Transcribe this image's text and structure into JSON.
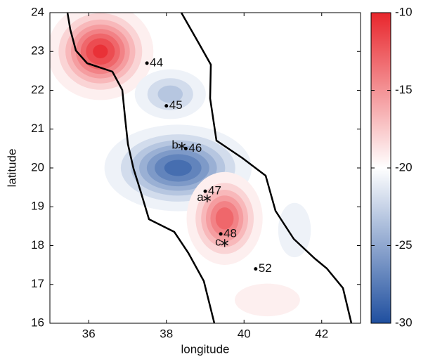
{
  "chart_data": {
    "type": "contour",
    "xlabel": "longitude",
    "ylabel": "latitude",
    "xlim": [
      35,
      43
    ],
    "ylim": [
      16,
      24
    ],
    "xticks": [
      36,
      38,
      40,
      42
    ],
    "yticks": [
      16,
      17,
      18,
      19,
      20,
      21,
      22,
      23,
      24
    ],
    "clim": [
      -30,
      -10
    ],
    "cticks": [
      -10,
      -15,
      -20,
      -25,
      -30
    ],
    "background": -20,
    "colors": {
      "low": "#1f4f9f",
      "mid": "#ffffff",
      "high": "#e8262c"
    },
    "blobs": [
      {
        "x": 36.3,
        "y": 23.0,
        "sx": 0.6,
        "sy": 0.55,
        "value": -10
      },
      {
        "x": 38.1,
        "y": 21.9,
        "sx": 0.5,
        "sy": 0.35,
        "value": -24
      },
      {
        "x": 38.3,
        "y": 20.0,
        "sx": 0.85,
        "sy": 0.5,
        "value": -29
      },
      {
        "x": 39.5,
        "y": 18.7,
        "sx": 0.45,
        "sy": 0.55,
        "value": -12
      },
      {
        "x": 41.3,
        "y": 18.4,
        "sx": 0.3,
        "sy": 0.5,
        "value": -22
      },
      {
        "x": 40.6,
        "y": 16.6,
        "sx": 0.6,
        "sy": 0.3,
        "value": -18
      }
    ],
    "stations": {
      "x": [
        37.5,
        38.0,
        38.5,
        39.0,
        39.4,
        40.3
      ],
      "y": [
        22.7,
        21.6,
        20.5,
        19.4,
        18.3,
        17.4
      ],
      "labels": [
        "44",
        "45",
        "46",
        "47",
        "48",
        "52"
      ]
    },
    "events": {
      "x": [
        39.05,
        38.4,
        39.5
      ],
      "y": [
        19.25,
        20.6,
        18.1
      ],
      "labels": [
        "a",
        "b",
        "c"
      ]
    }
  }
}
